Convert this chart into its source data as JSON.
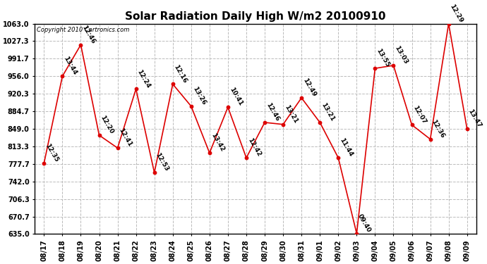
{
  "title": "Solar Radiation Daily High W/m2 20100910",
  "copyright": "Copyright 2010 Cartronics.com",
  "dates": [
    "08/17",
    "08/18",
    "08/19",
    "08/20",
    "08/21",
    "08/22",
    "08/23",
    "08/24",
    "08/25",
    "08/26",
    "08/27",
    "08/28",
    "08/29",
    "08/30",
    "08/31",
    "09/01",
    "09/02",
    "09/03",
    "09/04",
    "09/05",
    "09/06",
    "09/07",
    "09/08",
    "09/09"
  ],
  "values": [
    779,
    956,
    1020,
    836,
    810,
    930,
    760,
    940,
    895,
    800,
    893,
    790,
    862,
    858,
    912,
    862,
    790,
    636,
    972,
    978,
    857,
    828,
    1063,
    849
  ],
  "labels": [
    "12:35",
    "13:44",
    "12:46",
    "12:20",
    "12:41",
    "12:24",
    "12:53",
    "12:16",
    "13:26",
    "13:42",
    "10:41",
    "12:42",
    "12:46",
    "13:21",
    "12:49",
    "13:21",
    "11:44",
    "09:40",
    "13:55",
    "13:03",
    "12:07",
    "12:36",
    "12:29",
    "13:47"
  ],
  "line_color": "#dd0000",
  "marker_color": "#dd0000",
  "bg_color": "#ffffff",
  "grid_color": "#bbbbbb",
  "yticks": [
    635.0,
    670.7,
    706.3,
    742.0,
    777.7,
    813.3,
    849.0,
    884.7,
    920.3,
    956.0,
    991.7,
    1027.3,
    1063.0
  ],
  "ylim": [
    635.0,
    1063.0
  ],
  "title_fontsize": 11,
  "label_fontsize": 6.5,
  "tick_fontsize": 7,
  "copyright_fontsize": 6
}
